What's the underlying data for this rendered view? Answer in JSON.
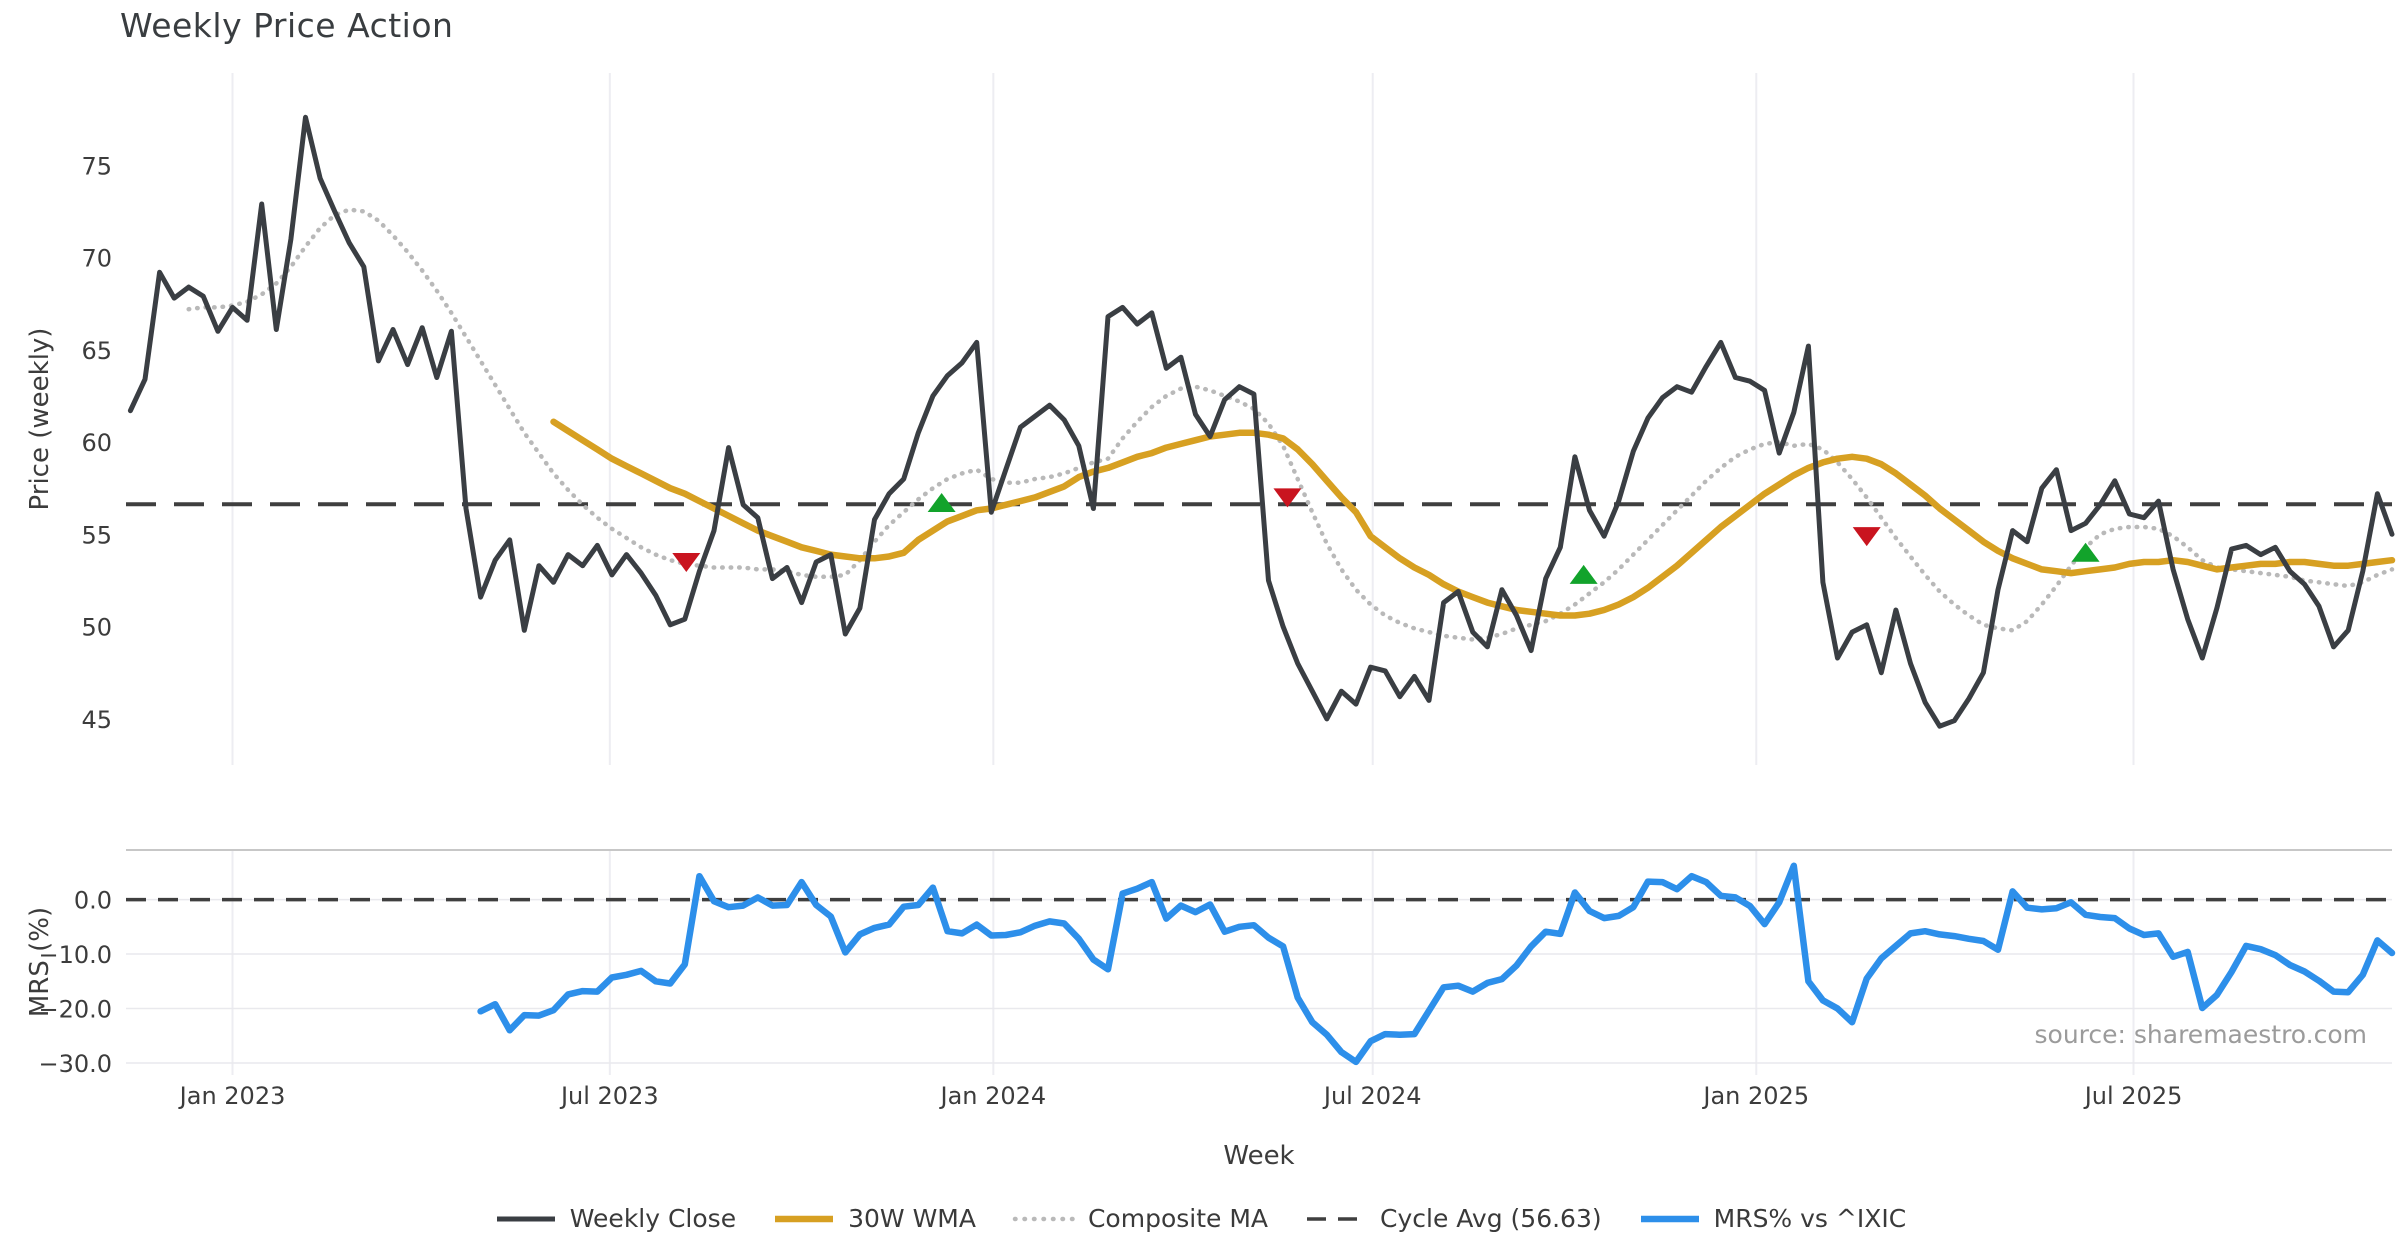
{
  "title": "Weekly Price Action",
  "axes": {
    "price_label": "Price (weekly)",
    "mrs_label": "MRS (%)",
    "week_label": "Week"
  },
  "source_text": "source: sharemaestro.com",
  "colors": {
    "close": "#3a3e43",
    "wma": "#d7a022",
    "composite": "#b9b9b9",
    "cycle_avg": "#3f3f3f",
    "mrs": "#2d8fea",
    "buy": "#12a32b",
    "sell": "#c9141f",
    "vgrid": "#ededf2",
    "hgrid": "#e9e9ed",
    "spine": "#c7c7c7",
    "tick_text": "#3c3c3c"
  },
  "legend": [
    {
      "label": "Weekly Close",
      "style": "solid",
      "color": "#3a3e43",
      "width": 5
    },
    {
      "label": "30W WMA",
      "style": "solid",
      "color": "#d7a022",
      "width": 6.5
    },
    {
      "label": "Composite MA",
      "style": "dotted",
      "color": "#b9b9b9",
      "width": 4.5
    },
    {
      "label": "Cycle Avg (56.63)",
      "style": "dashed",
      "color": "#3f3f3f",
      "width": 3.5
    },
    {
      "label": "MRS% vs ^IXIC",
      "style": "solid",
      "color": "#2d8fea",
      "width": 6.5
    }
  ],
  "chart_data": [
    {
      "type": "line",
      "panel": "price",
      "title": "Weekly Price Action",
      "ylabel": "Price (weekly)",
      "xlabel": "Week",
      "x_unit": "weeks since 2023-01-01",
      "xlim": [
        -7.3,
        148.0
      ],
      "ylim": [
        42.5,
        80.0
      ],
      "yticks": [
        45,
        50,
        55,
        60,
        65,
        70,
        75
      ],
      "xticks": [
        {
          "week": 0,
          "label": "Jan 2023"
        },
        {
          "week": 25.857,
          "label": "Jul 2023"
        },
        {
          "week": 52.143,
          "label": "Jan 2024"
        },
        {
          "week": 78.143,
          "label": "Jul 2024"
        },
        {
          "week": 104.429,
          "label": "Jan 2025"
        },
        {
          "week": 130.286,
          "label": "Jul 2025"
        }
      ],
      "cycle_avg": 56.63,
      "grid": "vertical-only",
      "legend_position": "bottom-center",
      "series": [
        {
          "name": "Weekly Close",
          "key": "close",
          "start_week": -7,
          "values": [
            61.7,
            63.4,
            69.2,
            67.8,
            68.4,
            67.9,
            66.0,
            67.3,
            66.6,
            72.9,
            66.1,
            71.0,
            77.6,
            74.3,
            72.5,
            70.8,
            69.5,
            64.4,
            66.1,
            64.2,
            66.2,
            63.5,
            66.0,
            56.4,
            51.6,
            53.6,
            54.7,
            49.8,
            53.3,
            52.4,
            53.9,
            53.3,
            54.4,
            52.8,
            53.9,
            52.9,
            51.7,
            50.1,
            50.4,
            53.0,
            55.2,
            59.7,
            56.6,
            55.9,
            52.6,
            53.2,
            51.3,
            53.5,
            53.9,
            49.6,
            51.0,
            55.8,
            57.2,
            58.0,
            60.5,
            62.5,
            63.6,
            64.3,
            65.4,
            56.2,
            58.5,
            60.8,
            61.4,
            62.0,
            61.2,
            59.8,
            56.4,
            66.8,
            67.3,
            66.4,
            67.0,
            64.0,
            64.6,
            61.5,
            60.3,
            62.3,
            63.0,
            62.6,
            52.5,
            50.0,
            48.0,
            46.5,
            45.0,
            46.5,
            45.8,
            47.8,
            47.6,
            46.2,
            47.3,
            46.0,
            51.3,
            51.9,
            49.7,
            48.9,
            52.0,
            50.6,
            48.7,
            52.6,
            54.3,
            59.2,
            56.3,
            54.9,
            56.8,
            59.5,
            61.3,
            62.4,
            63.0,
            62.7,
            64.1,
            65.4,
            63.5,
            63.3,
            62.8,
            59.4,
            61.6,
            65.2,
            52.4,
            48.3,
            49.7,
            50.1,
            47.5,
            50.9,
            48.0,
            45.9,
            44.6,
            44.9,
            46.1,
            47.5,
            52.0,
            55.2,
            54.6,
            57.5,
            58.5,
            55.2,
            55.6,
            56.6,
            57.9,
            56.1,
            55.9,
            56.8,
            53.1,
            50.4,
            48.3,
            51.0,
            54.2,
            54.4,
            53.9,
            54.3,
            53.0,
            52.3,
            51.1,
            48.9,
            49.8,
            53.0,
            57.2,
            55.0
          ]
        },
        {
          "name": "30W WMA",
          "key": "wma",
          "start_week": 22,
          "values": [
            61.1,
            60.6,
            60.1,
            59.6,
            59.1,
            58.7,
            58.3,
            57.9,
            57.5,
            57.2,
            56.8,
            56.4,
            56.0,
            55.6,
            55.2,
            54.9,
            54.6,
            54.3,
            54.1,
            53.9,
            53.8,
            53.7,
            53.7,
            53.8,
            54.0,
            54.7,
            55.2,
            55.7,
            56.0,
            56.3,
            56.4,
            56.6,
            56.8,
            57.0,
            57.3,
            57.6,
            58.1,
            58.4,
            58.6,
            58.9,
            59.2,
            59.4,
            59.7,
            59.9,
            60.1,
            60.3,
            60.4,
            60.5,
            60.5,
            60.4,
            60.2,
            59.6,
            58.8,
            57.9,
            57.0,
            56.2,
            54.9,
            54.3,
            53.7,
            53.2,
            52.8,
            52.3,
            51.9,
            51.6,
            51.3,
            51.1,
            50.9,
            50.8,
            50.7,
            50.6,
            50.6,
            50.7,
            50.9,
            51.2,
            51.6,
            52.1,
            52.7,
            53.3,
            54.0,
            54.7,
            55.4,
            56.0,
            56.6,
            57.2,
            57.7,
            58.2,
            58.6,
            58.9,
            59.1,
            59.2,
            59.1,
            58.8,
            58.3,
            57.7,
            57.1,
            56.4,
            55.8,
            55.2,
            54.6,
            54.1,
            53.7,
            53.4,
            53.1,
            53.0,
            52.9,
            53.0,
            53.1,
            53.2,
            53.4,
            53.5,
            53.5,
            53.6,
            53.5,
            53.3,
            53.1,
            53.2,
            53.3,
            53.4,
            53.4,
            53.5,
            53.5,
            53.4,
            53.3,
            53.3,
            53.4,
            53.5,
            53.6
          ]
        },
        {
          "name": "Composite MA",
          "key": "composite",
          "start_week": -3,
          "values": [
            67.2,
            67.3,
            67.3,
            67.4,
            67.6,
            68.0,
            68.6,
            69.5,
            70.6,
            71.6,
            72.3,
            72.6,
            72.5,
            72.0,
            71.2,
            70.3,
            69.3,
            68.2,
            67.0,
            65.7,
            64.4,
            63.1,
            61.8,
            60.5,
            59.4,
            58.3,
            57.4,
            56.6,
            55.9,
            55.3,
            54.8,
            54.3,
            53.9,
            53.6,
            53.4,
            53.3,
            53.2,
            53.2,
            53.2,
            53.1,
            53.1,
            53.0,
            52.8,
            52.7,
            52.7,
            52.8,
            53.6,
            54.6,
            55.5,
            56.2,
            56.9,
            57.5,
            58.0,
            58.3,
            58.5,
            58.0,
            57.8,
            57.8,
            58.0,
            58.1,
            58.3,
            58.6,
            58.9,
            59.1,
            60.2,
            61.1,
            61.9,
            62.5,
            62.9,
            63.0,
            62.8,
            62.5,
            62.2,
            61.8,
            61.0,
            59.8,
            58.0,
            56.2,
            54.5,
            53.1,
            52.0,
            51.2,
            50.6,
            50.2,
            49.9,
            49.7,
            49.5,
            49.4,
            49.3,
            49.4,
            49.6,
            49.9,
            50.1,
            50.3,
            50.7,
            51.2,
            51.8,
            52.4,
            53.1,
            53.9,
            54.7,
            55.5,
            56.3,
            57.1,
            57.9,
            58.6,
            59.2,
            59.6,
            59.9,
            60.0,
            59.8,
            59.9,
            59.6,
            58.9,
            58.0,
            57.0,
            55.9,
            54.8,
            53.8,
            52.8,
            51.9,
            51.2,
            50.6,
            50.1,
            49.9,
            49.8,
            50.3,
            51.2,
            52.2,
            53.3,
            54.3,
            55.0,
            55.3,
            55.4,
            55.4,
            55.3,
            54.9,
            54.3,
            53.6,
            53.2,
            53.1,
            53.0,
            52.9,
            52.8,
            52.7,
            52.5,
            52.4,
            52.3,
            52.2,
            52.4,
            52.8,
            53.1
          ]
        }
      ],
      "markers": {
        "sell": [
          {
            "week": 31.1,
            "price": 53.5
          },
          {
            "week": 72.3,
            "price": 57.0
          },
          {
            "week": 112.0,
            "price": 54.9
          }
        ],
        "buy": [
          {
            "week": 48.6,
            "price": 56.7
          },
          {
            "week": 92.6,
            "price": 52.8
          },
          {
            "week": 127.0,
            "price": 54.0
          }
        ]
      }
    },
    {
      "type": "line",
      "panel": "mrs",
      "ylabel": "MRS (%)",
      "xlim": [
        -7.3,
        148.0
      ],
      "ylim": [
        -32.2,
        9.1
      ],
      "yticks": [
        {
          "v": 0,
          "label": "0.0"
        },
        {
          "v": -10,
          "label": "−10.0"
        },
        {
          "v": -20,
          "label": "−20.0"
        },
        {
          "v": -30,
          "label": "−30.0"
        }
      ],
      "zero_line_dashed": true,
      "series": [
        {
          "name": "MRS% vs ^IXIC",
          "key": "mrs",
          "start_week": 17,
          "values": [
            -20.5,
            -19.2,
            -24.0,
            -21.2,
            -21.3,
            -20.3,
            -17.4,
            -16.8,
            -16.9,
            -14.3,
            -13.8,
            -13.1,
            -15.0,
            -15.4,
            -11.9,
            4.3,
            -0.3,
            -1.4,
            -1.1,
            0.4,
            -1.1,
            -1.0,
            3.2,
            -1.0,
            -3.1,
            -9.7,
            -6.4,
            -5.2,
            -4.6,
            -1.3,
            -1.0,
            2.2,
            -5.8,
            -6.2,
            -4.6,
            -6.6,
            -6.5,
            -6.0,
            -4.8,
            -4.0,
            -4.4,
            -7.2,
            -11.0,
            -12.8,
            1.1,
            2.0,
            3.2,
            -3.5,
            -1.1,
            -2.3,
            -0.9,
            -5.9,
            -5.0,
            -4.7,
            -7.0,
            -8.6,
            -18.0,
            -22.5,
            -24.8,
            -28.0,
            -29.8,
            -26.0,
            -24.7,
            -24.8,
            -24.7,
            -20.4,
            -16.1,
            -15.8,
            -16.9,
            -15.3,
            -14.6,
            -12.1,
            -8.6,
            -5.9,
            -6.3,
            1.3,
            -2.1,
            -3.4,
            -3.0,
            -1.4,
            3.3,
            3.2,
            1.9,
            4.3,
            3.2,
            0.7,
            0.4,
            -1.2,
            -4.5,
            -0.5,
            6.2,
            -15.0,
            -18.5,
            -20.0,
            -22.5,
            -14.5,
            -10.8,
            -8.5,
            -6.2,
            -5.8,
            -6.4,
            -6.7,
            -7.2,
            -7.6,
            -9.2,
            1.5,
            -1.5,
            -1.8,
            -1.6,
            -0.5,
            -2.8,
            -3.2,
            -3.4,
            -5.3,
            -6.5,
            -6.2,
            -10.5,
            -9.6,
            -19.9,
            -17.5,
            -13.3,
            -8.5,
            -9.1,
            -10.2,
            -12.0,
            -13.2,
            -14.9,
            -16.9,
            -17.0,
            -13.8,
            -7.5,
            -9.8
          ]
        }
      ]
    }
  ]
}
